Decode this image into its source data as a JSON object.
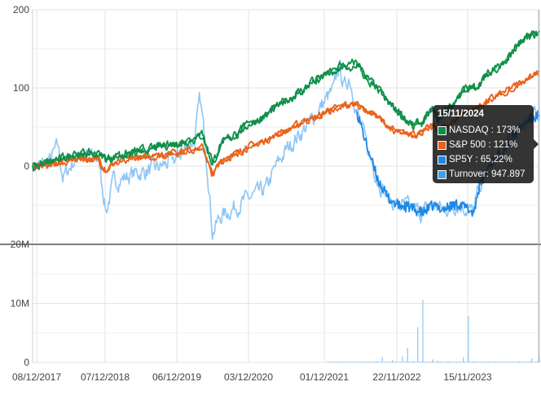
{
  "colors": {
    "nasdaq": "#0f8f49",
    "sp500": "#e8621a",
    "sp5y": "#1e88e5",
    "turnover": "#8ec6f5",
    "grid": "#e3e3e3",
    "divider": "#555555"
  },
  "chart_data": {
    "type": "line",
    "x_tick_labels": [
      "08/12/2017",
      "07/12/2018",
      "06/12/2019",
      "03/12/2020",
      "01/12/2021",
      "22/11/2022",
      "15/11/2023"
    ],
    "price_panel": {
      "y_ticks": [
        0,
        100,
        200
      ],
      "ylim": [
        -100,
        200
      ],
      "y_tick_labels": [
        "0",
        "100",
        "200"
      ],
      "series": [
        {
          "name": "NASDAQ",
          "unit": "%",
          "points": [
            [
              0,
              0
            ],
            [
              0.05,
              8
            ],
            [
              0.09,
              17
            ],
            [
              0.13,
              15
            ],
            [
              0.145,
              8
            ],
            [
              0.16,
              11
            ],
            [
              0.2,
              18
            ],
            [
              0.245,
              24
            ],
            [
              0.32,
              35
            ],
            [
              0.335,
              40
            ],
            [
              0.345,
              20
            ],
            [
              0.355,
              3
            ],
            [
              0.37,
              26
            ],
            [
              0.43,
              55
            ],
            [
              0.46,
              65
            ],
            [
              0.5,
              84
            ],
            [
              0.53,
              97
            ],
            [
              0.56,
              110
            ],
            [
              0.59,
              120
            ],
            [
              0.61,
              127
            ],
            [
              0.625,
              128
            ],
            [
              0.64,
              134
            ],
            [
              0.655,
              115
            ],
            [
              0.68,
              100
            ],
            [
              0.7,
              82
            ],
            [
              0.72,
              70
            ],
            [
              0.75,
              52
            ],
            [
              0.77,
              56
            ],
            [
              0.79,
              72
            ],
            [
              0.8,
              60
            ],
            [
              0.815,
              72
            ],
            [
              0.83,
              80
            ],
            [
              0.85,
              98
            ],
            [
              0.87,
              100
            ],
            [
              0.9,
              118
            ],
            [
              0.92,
              128
            ],
            [
              0.94,
              140
            ],
            [
              0.96,
              156
            ],
            [
              0.98,
              165
            ],
            [
              1.0,
              173
            ]
          ]
        },
        {
          "name": "S&P 500",
          "unit": "%",
          "points": [
            [
              0,
              0
            ],
            [
              0.05,
              4
            ],
            [
              0.09,
              10
            ],
            [
              0.13,
              8
            ],
            [
              0.145,
              -6
            ],
            [
              0.16,
              4
            ],
            [
              0.2,
              10
            ],
            [
              0.245,
              12
            ],
            [
              0.32,
              22
            ],
            [
              0.335,
              24
            ],
            [
              0.345,
              8
            ],
            [
              0.355,
              -12
            ],
            [
              0.37,
              5
            ],
            [
              0.43,
              26
            ],
            [
              0.46,
              33
            ],
            [
              0.5,
              45
            ],
            [
              0.53,
              56
            ],
            [
              0.56,
              63
            ],
            [
              0.59,
              72
            ],
            [
              0.61,
              76
            ],
            [
              0.625,
              78
            ],
            [
              0.64,
              80
            ],
            [
              0.655,
              72
            ],
            [
              0.68,
              64
            ],
            [
              0.7,
              52
            ],
            [
              0.72,
              43
            ],
            [
              0.75,
              40
            ],
            [
              0.77,
              44
            ],
            [
              0.79,
              52
            ],
            [
              0.8,
              46
            ],
            [
              0.815,
              50
            ],
            [
              0.83,
              56
            ],
            [
              0.85,
              68
            ],
            [
              0.87,
              72
            ],
            [
              0.9,
              85
            ],
            [
              0.92,
              90
            ],
            [
              0.94,
              98
            ],
            [
              0.96,
              106
            ],
            [
              0.98,
              114
            ],
            [
              1.0,
              121
            ]
          ]
        },
        {
          "name": "SP5Y",
          "unit": "%",
          "points": [
            [
              0,
              0
            ],
            [
              0.03,
              2
            ],
            [
              0.05,
              26
            ],
            [
              0.06,
              -15
            ],
            [
              0.09,
              15
            ],
            [
              0.13,
              10
            ],
            [
              0.145,
              -58
            ],
            [
              0.16,
              -20
            ],
            [
              0.2,
              -10
            ],
            [
              0.245,
              -3
            ],
            [
              0.28,
              8
            ],
            [
              0.32,
              35
            ],
            [
              0.33,
              85
            ],
            [
              0.335,
              62
            ],
            [
              0.345,
              0
            ],
            [
              0.355,
              -85
            ],
            [
              0.37,
              -65
            ],
            [
              0.4,
              -52
            ],
            [
              0.43,
              -40
            ],
            [
              0.46,
              -30
            ],
            [
              0.48,
              -1
            ],
            [
              0.5,
              20
            ],
            [
              0.52,
              36
            ],
            [
              0.54,
              50
            ],
            [
              0.56,
              68
            ],
            [
              0.58,
              86
            ],
            [
              0.595,
              98
            ],
            [
              0.605,
              130
            ],
            [
              0.615,
              100
            ],
            [
              0.625,
              115
            ],
            [
              0.64,
              70
            ],
            [
              0.66,
              25
            ],
            [
              0.68,
              -15
            ],
            [
              0.7,
              -40
            ],
            [
              0.72,
              -50
            ],
            [
              0.74,
              -52
            ],
            [
              0.77,
              -60
            ],
            [
              0.79,
              -50
            ],
            [
              0.81,
              -55
            ],
            [
              0.84,
              -48
            ],
            [
              0.86,
              -55
            ],
            [
              0.87,
              -60
            ],
            [
              0.88,
              -30
            ],
            [
              0.9,
              0
            ],
            [
              0.92,
              15
            ],
            [
              0.94,
              32
            ],
            [
              0.96,
              48
            ],
            [
              0.98,
              60
            ],
            [
              1.0,
              65.22
            ]
          ]
        }
      ]
    },
    "volume_panel": {
      "y_ticks": [
        0,
        10000000,
        20000000
      ],
      "y_tick_labels": [
        "0",
        "10M",
        "20M"
      ],
      "ylim": [
        0,
        20000000
      ],
      "series": [
        {
          "name": "Turnover",
          "type": "bar",
          "spikes": [
            [
              0.64,
              80000
            ],
            [
              0.66,
              100000
            ],
            [
              0.68,
              200000
            ],
            [
              0.69,
              900000
            ],
            [
              0.71,
              400000
            ],
            [
              0.73,
              1000000
            ],
            [
              0.74,
              2500000
            ],
            [
              0.75,
              150000
            ],
            [
              0.76,
              6000000
            ],
            [
              0.77,
              10600000
            ],
            [
              0.775,
              120000
            ],
            [
              0.79,
              500000
            ],
            [
              0.8,
              300000
            ],
            [
              0.82,
              200000
            ],
            [
              0.85,
              900000
            ],
            [
              0.86,
              7800000
            ],
            [
              0.87,
              200000
            ],
            [
              0.9,
              150000
            ],
            [
              0.93,
              100000
            ],
            [
              0.96,
              200000
            ],
            [
              0.985,
              700000
            ],
            [
              1.0,
              947897
            ]
          ],
          "base": 150000
        }
      ]
    }
  },
  "tooltip": {
    "date": "15/11/2024",
    "rows": [
      {
        "label": "NASDAQ : 173%",
        "color": "#0f8f49"
      },
      {
        "label": "S&P 500 : 121%",
        "color": "#e8621a"
      },
      {
        "label": "SP5Y : 65,22%",
        "color": "#1e88e5"
      },
      {
        "label": "Turnover: 947.897",
        "color": "#3fa0ee"
      }
    ]
  }
}
